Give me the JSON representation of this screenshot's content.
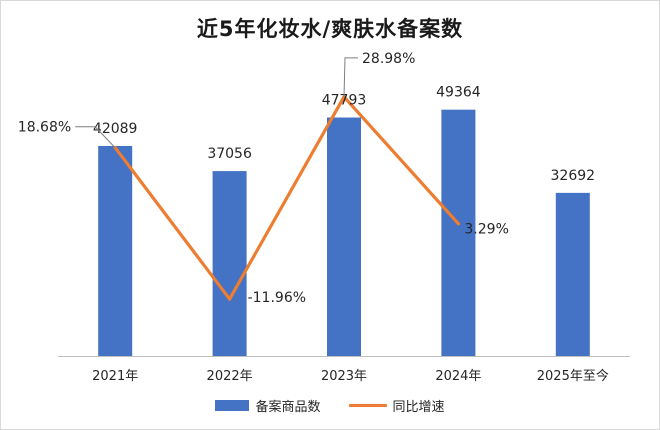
{
  "colors": {
    "bar": "#4472c4",
    "line": "#ed7d31",
    "leader": "#7f7f7f",
    "axis": "#bfbfbf",
    "text": "#262626"
  },
  "legend": {
    "bar_label": "备案商品数",
    "line_label": "同比增速"
  },
  "chart_data": {
    "type": "bar",
    "title": "近5年化妆水/爽肤水备案数",
    "categories": [
      "2021年",
      "2022年",
      "2023年",
      "2024年",
      "2025年至今"
    ],
    "series": [
      {
        "name": "备案商品数",
        "type": "bar",
        "values": [
          42089,
          37056,
          47793,
          49364,
          32692
        ],
        "labels": [
          "42089",
          "37056",
          "47793",
          "49364",
          "32692"
        ]
      },
      {
        "name": "同比增速",
        "type": "line",
        "values": [
          18.68,
          -11.96,
          28.98,
          3.29,
          null
        ],
        "labels": [
          "18.68%",
          "-11.96%",
          "28.98%",
          "3.29%",
          null
        ]
      }
    ],
    "grid": false,
    "legend_position": "bottom"
  }
}
